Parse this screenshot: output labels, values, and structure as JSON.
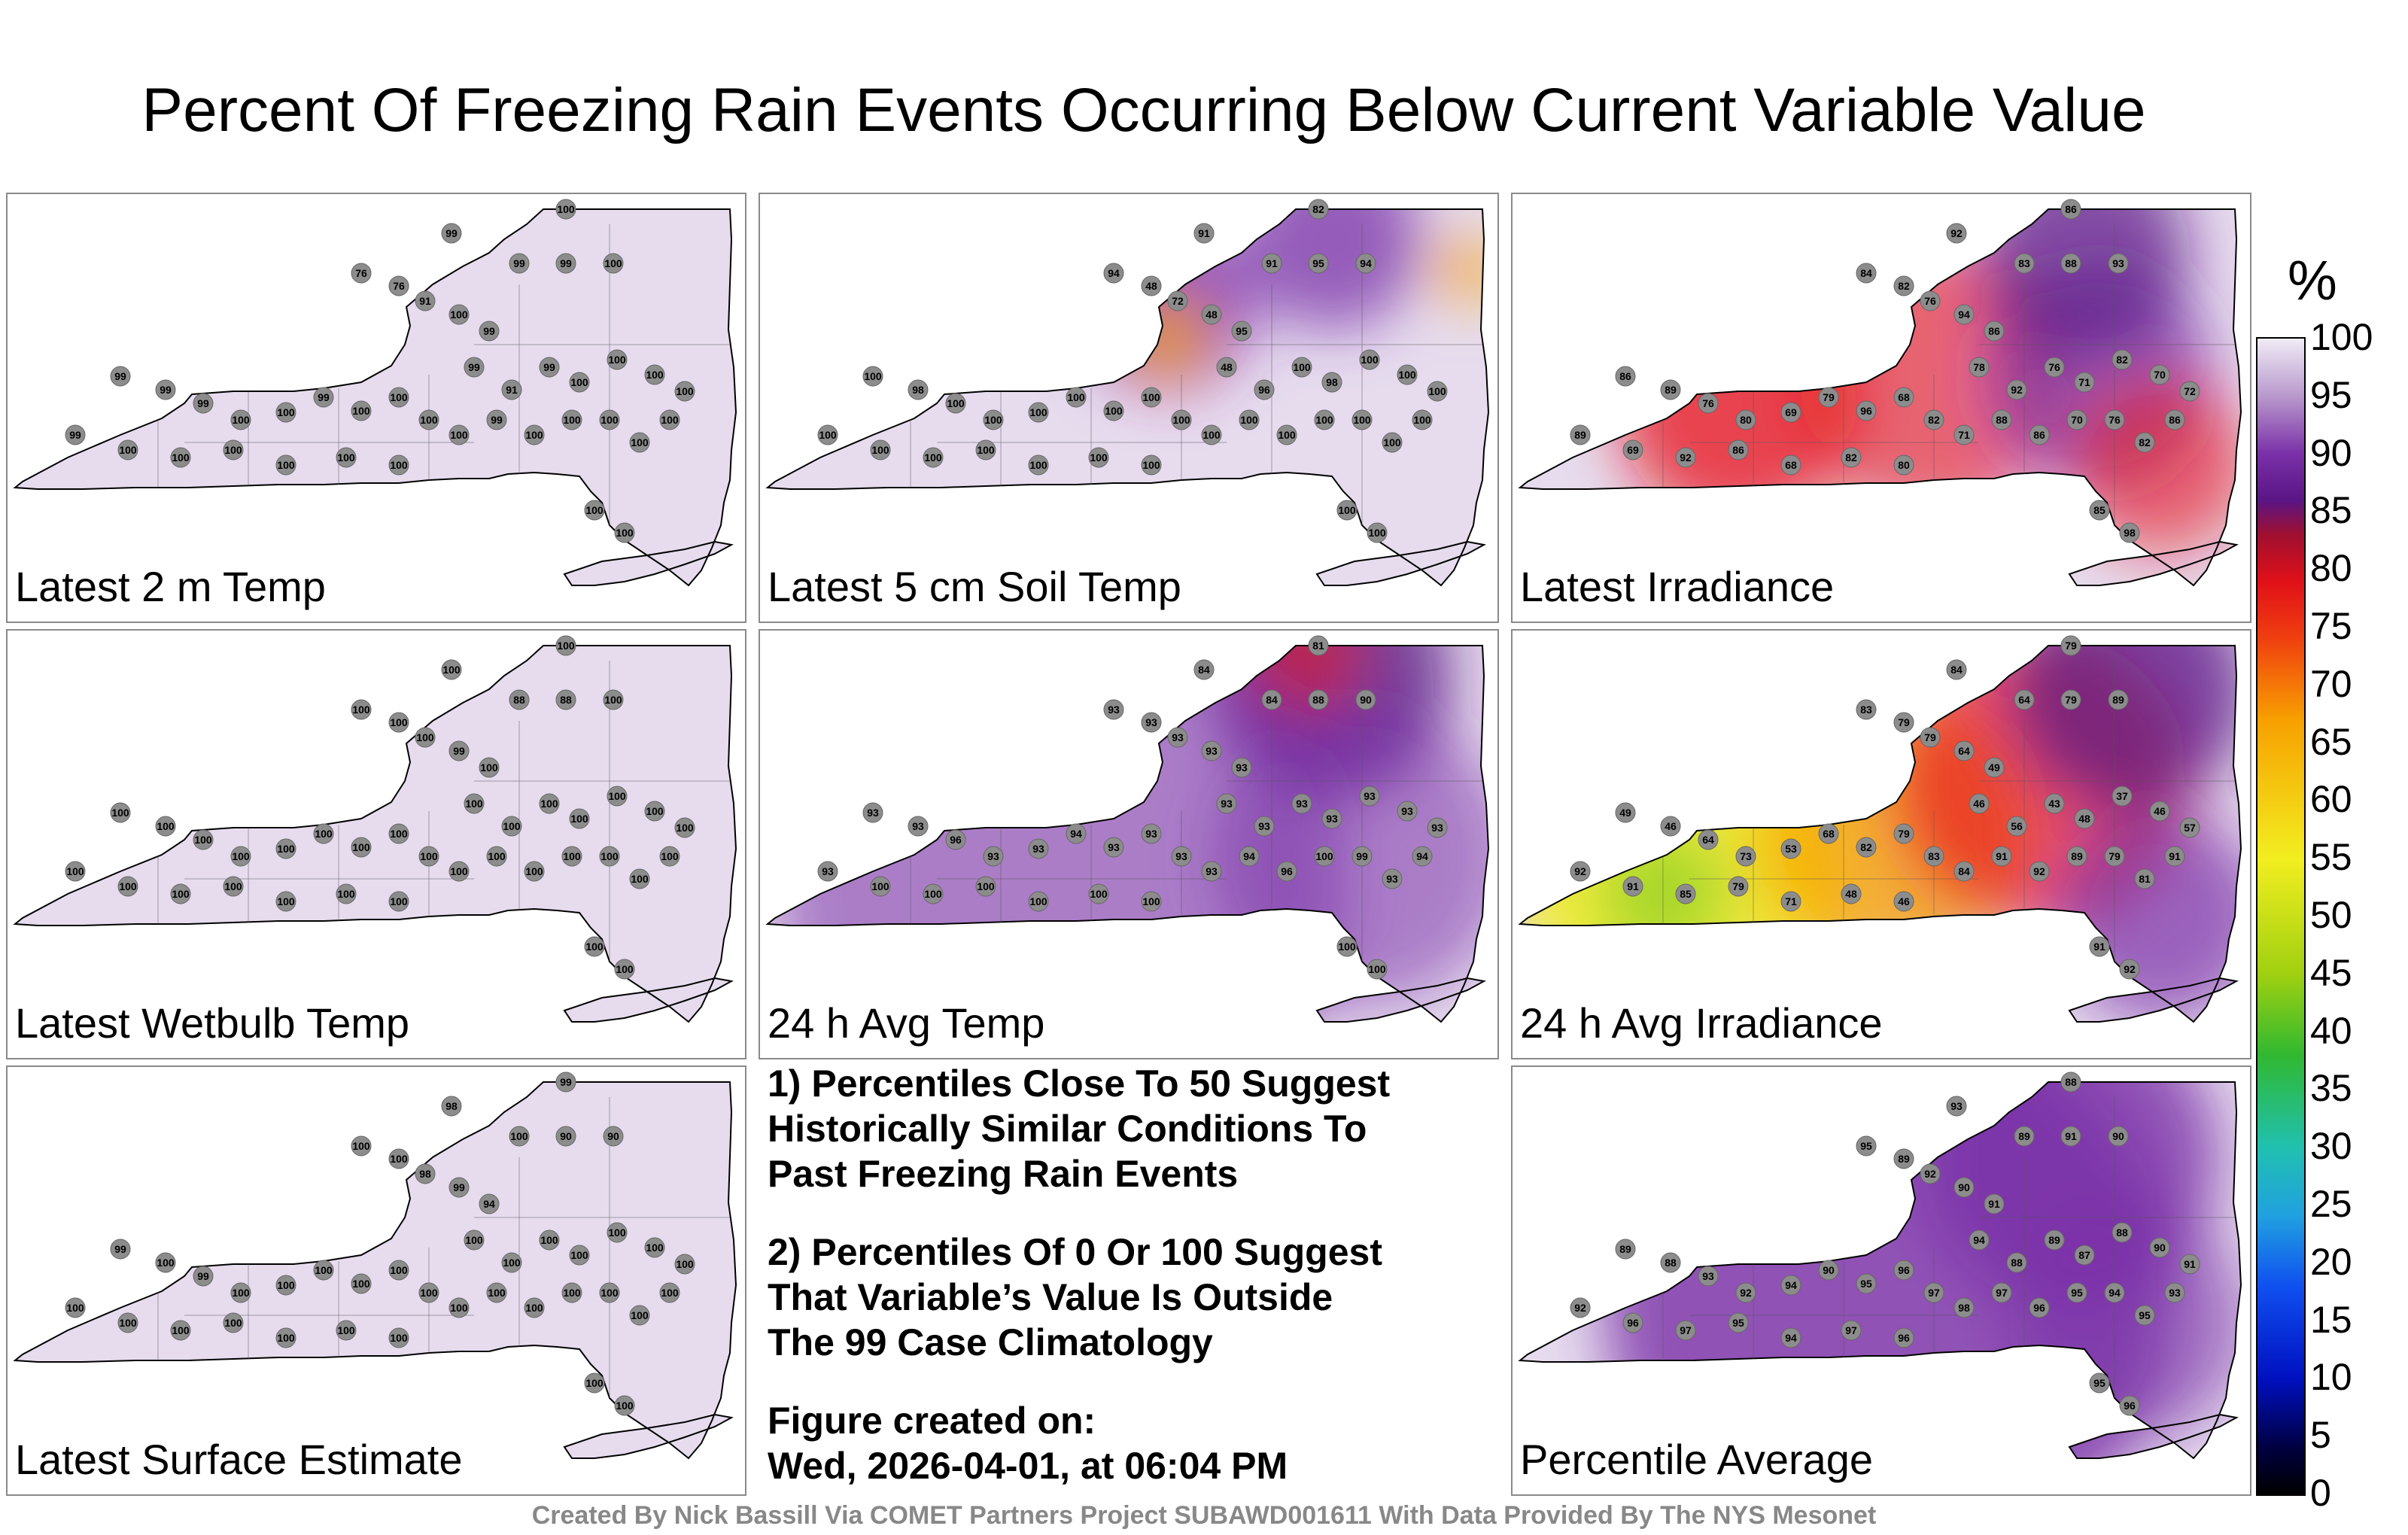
{
  "title": "Percent Of Freezing Rain Events Occurring Below Current Variable Value",
  "panels": [
    {
      "id": "p1",
      "label": "Latest 2 m Temp",
      "palette": "flat-light",
      "values": [
        "99",
        "100",
        "99",
        "99",
        "100",
        "76",
        "76",
        "91",
        "100",
        "99",
        "99",
        "91",
        "99",
        "100",
        "100",
        "100",
        "100",
        "99",
        "99",
        "99",
        "100",
        "100",
        "99",
        "100",
        "100",
        "100",
        "100",
        "99",
        "100",
        "100",
        "100",
        "100",
        "100",
        "99",
        "100",
        "100",
        "100",
        "100",
        "100",
        "100",
        "100",
        "100"
      ]
    },
    {
      "id": "p2",
      "label": "Latest 5 cm Soil Temp",
      "palette": "soil",
      "values": [
        "91",
        "82",
        "91",
        "95",
        "94",
        "94",
        "48",
        "72",
        "48",
        "95",
        "48",
        "96",
        "100",
        "98",
        "100",
        "100",
        "100",
        "100",
        "98",
        "100",
        "100",
        "100",
        "100",
        "100",
        "100",
        "100",
        "100",
        "100",
        "100",
        "100",
        "100",
        "100",
        "100",
        "100",
        "100",
        "100",
        "100",
        "100",
        "100",
        "100",
        "100",
        "100"
      ]
    },
    {
      "id": "p3",
      "label": "Latest Irradiance",
      "palette": "irradiance",
      "values": [
        "92",
        "86",
        "83",
        "88",
        "93",
        "84",
        "82",
        "76",
        "94",
        "86",
        "78",
        "92",
        "76",
        "71",
        "82",
        "70",
        "72",
        "86",
        "89",
        "76",
        "80",
        "69",
        "79",
        "96",
        "68",
        "82",
        "71",
        "88",
        "86",
        "70",
        "76",
        "82",
        "86",
        "89",
        "69",
        "92",
        "86",
        "68",
        "82",
        "80",
        "85",
        "98"
      ]
    },
    {
      "id": "p4",
      "label": "Latest Wetbulb Temp",
      "palette": "flat-light",
      "values": [
        "100",
        "100",
        "88",
        "88",
        "100",
        "100",
        "100",
        "100",
        "99",
        "100",
        "100",
        "100",
        "100",
        "100",
        "100",
        "100",
        "100",
        "100",
        "100",
        "100",
        "100",
        "100",
        "100",
        "100",
        "100",
        "100",
        "100",
        "100",
        "100",
        "100",
        "100",
        "100",
        "100",
        "100",
        "100",
        "100",
        "100",
        "100",
        "100",
        "100",
        "100",
        "100"
      ]
    },
    {
      "id": "p5",
      "label": "24 h Avg Temp",
      "palette": "avgtemp",
      "values": [
        "84",
        "81",
        "84",
        "88",
        "90",
        "93",
        "93",
        "93",
        "93",
        "93",
        "93",
        "93",
        "93",
        "93",
        "93",
        "93",
        "93",
        "93",
        "93",
        "96",
        "93",
        "93",
        "94",
        "93",
        "93",
        "93",
        "93",
        "94",
        "96",
        "100",
        "99",
        "93",
        "94",
        "93",
        "100",
        "100",
        "100",
        "100",
        "100",
        "100",
        "100",
        "100"
      ]
    },
    {
      "id": "p6",
      "label": "24 h Avg Irradiance",
      "palette": "avgirr",
      "values": [
        "84",
        "79",
        "64",
        "79",
        "89",
        "83",
        "79",
        "79",
        "64",
        "49",
        "46",
        "56",
        "43",
        "48",
        "37",
        "46",
        "57",
        "49",
        "46",
        "64",
        "73",
        "53",
        "68",
        "82",
        "79",
        "83",
        "84",
        "91",
        "92",
        "89",
        "79",
        "81",
        "91",
        "92",
        "91",
        "85",
        "79",
        "71",
        "48",
        "46",
        "91",
        "92"
      ]
    },
    {
      "id": "p7",
      "label": "Latest Surface Estimate",
      "palette": "flat-light",
      "values": [
        "98",
        "99",
        "100",
        "90",
        "90",
        "100",
        "100",
        "98",
        "99",
        "94",
        "100",
        "100",
        "100",
        "100",
        "100",
        "100",
        "100",
        "99",
        "100",
        "99",
        "100",
        "100",
        "100",
        "100",
        "100",
        "100",
        "100",
        "100",
        "100",
        "100",
        "100",
        "100",
        "100",
        "100",
        "100",
        "100",
        "100",
        "100",
        "100",
        "100",
        "100",
        "100"
      ]
    },
    {
      "id": "p8",
      "label": "Percentile Average",
      "palette": "average",
      "values": [
        "93",
        "88",
        "89",
        "91",
        "90",
        "95",
        "89",
        "92",
        "90",
        "91",
        "94",
        "88",
        "89",
        "87",
        "88",
        "90",
        "91",
        "89",
        "88",
        "93",
        "92",
        "94",
        "90",
        "95",
        "96",
        "97",
        "98",
        "97",
        "96",
        "95",
        "94",
        "95",
        "93",
        "92",
        "96",
        "97",
        "95",
        "94",
        "97",
        "96",
        "95",
        "96"
      ]
    }
  ],
  "notes": {
    "note1": "1) Percentiles Close To 50 Suggest\nHistorically Similar Conditions To\nPast Freezing Rain Events",
    "note2": "2) Percentiles Of 0 Or 100 Suggest\nThat Variable’s Value Is Outside\nThe 99 Case Climatology",
    "created_label": "Figure created on:",
    "created_value": "Wed, 2026-04-01, at 06:04 PM"
  },
  "colorbar": {
    "unit": "%",
    "ticks": [
      "100",
      "95",
      "90",
      "85",
      "80",
      "75",
      "70",
      "65",
      "60",
      "55",
      "50",
      "45",
      "40",
      "35",
      "30",
      "25",
      "20",
      "15",
      "10",
      "5",
      "0"
    ]
  },
  "credit": "Created By Nick Bassill Via COMET Partners Project SUBAWD001611 With Data Provided By The NYS Mesonet",
  "colors": {
    "light": "#e6dcee",
    "purple": "#7a30a8",
    "deep_purple": "#5a1585",
    "red": "#e8161a",
    "orange": "#f7a000",
    "yellow": "#f2ee20",
    "green": "#70c820",
    "station": "#8c8c8c"
  }
}
